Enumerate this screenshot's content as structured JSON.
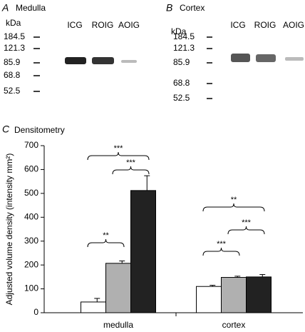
{
  "blots": [
    {
      "panel": "A",
      "title": "Medulla",
      "unit": "kDa",
      "markers": [
        184.5,
        121.3,
        85.9,
        68.8,
        52.5
      ],
      "lanes": [
        "ICG",
        "ROIG",
        "AOIG"
      ]
    },
    {
      "panel": "B",
      "title": "Cortex",
      "unit": "kDa",
      "markers": [
        184.5,
        121.3,
        85.9,
        68.8,
        52.5
      ],
      "lanes": [
        "ICG",
        "ROIG",
        "AOIG"
      ]
    }
  ],
  "chart_data": {
    "type": "bar",
    "panel": "C",
    "title": "Densitometry",
    "y_label": "Adjusted volume density (intensity mm²)",
    "categories": [
      "medulla",
      "cortex"
    ],
    "series": [
      {
        "color": "#ffffff",
        "values": [
          45,
          110
        ],
        "errors": [
          15,
          5
        ]
      },
      {
        "color": "#b0b0b0",
        "values": [
          207,
          148
        ],
        "errors": [
          10,
          5
        ]
      },
      {
        "color": "#222222",
        "values": [
          512,
          150
        ],
        "errors": [
          62,
          10
        ]
      }
    ],
    "brackets": [
      [
        "**",
        "***",
        "***"
      ],
      [
        "***",
        "***",
        "**"
      ]
    ],
    "ylim": [
      0,
      700
    ],
    "yticks": [
      0,
      100,
      200,
      300,
      400,
      500,
      600,
      700
    ]
  }
}
